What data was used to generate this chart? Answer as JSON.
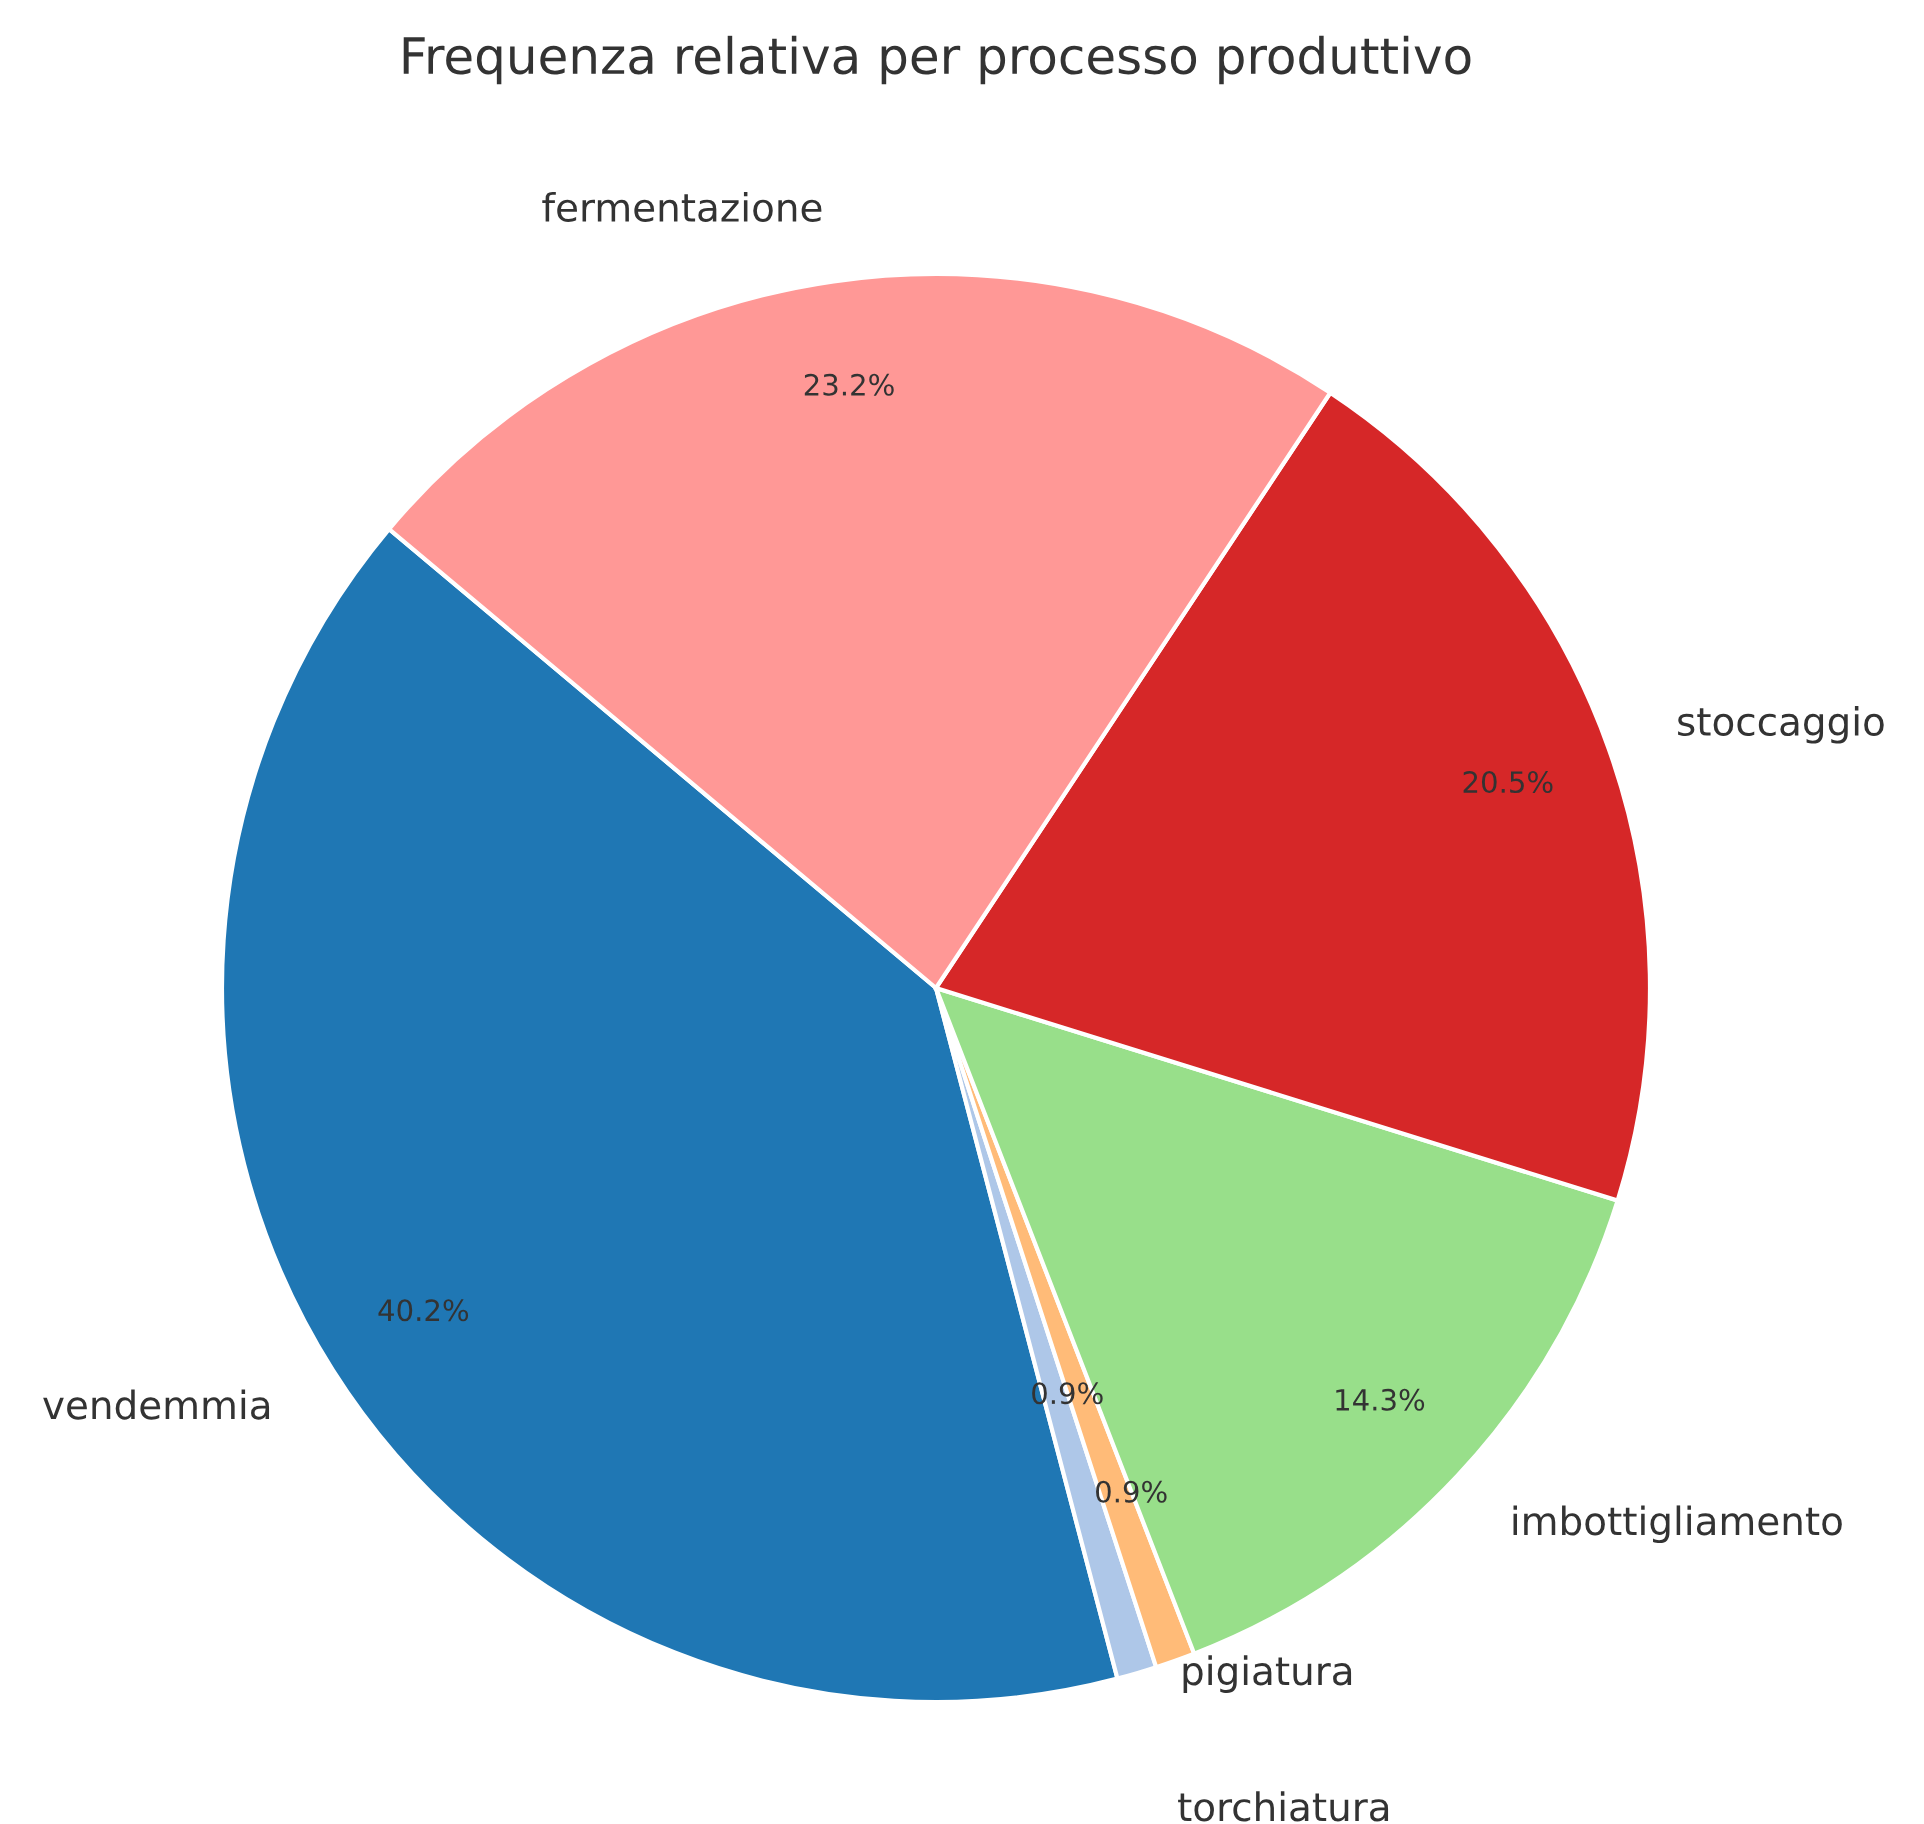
{
  "chart_data": {
    "type": "pie",
    "title": "Frequenza relativa per processo produttivo",
    "categories": [
      "vendemmia",
      "torchiatura",
      "pigiatura",
      "imbottigliamento",
      "stoccaggio",
      "fermentazione"
    ],
    "values": [
      40.2,
      0.9,
      0.9,
      14.3,
      20.5,
      23.2
    ],
    "colors": [
      "#1f77b4",
      "#aec7e8",
      "#ffbb78",
      "#98df8a",
      "#d62728",
      "#ff9896"
    ],
    "value_labels": [
      "40.2%",
      "0.9%",
      "0.9%",
      "14.3%",
      "20.5%",
      "23.2%"
    ]
  }
}
